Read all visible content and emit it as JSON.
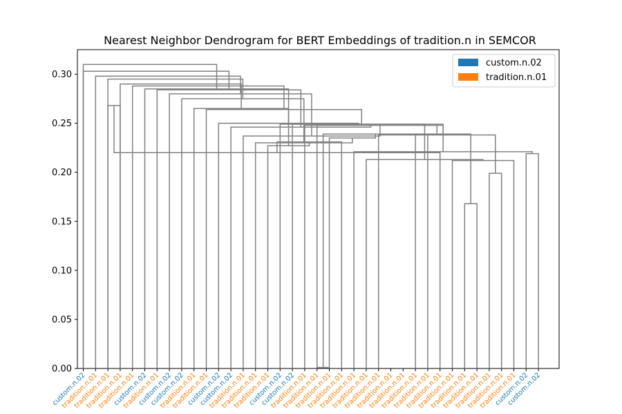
{
  "chart_data": {
    "type": "dendrogram",
    "title": "Nearest Neighbor Dendrogram for BERT Embeddings of tradition.n in SEMCOR",
    "xlabel": "",
    "ylabel": "",
    "ylim": [
      0,
      0.325
    ],
    "yticks": [
      "0.00",
      "0.05",
      "0.10",
      "0.15",
      "0.20",
      "0.25",
      "0.30"
    ],
    "yticks_values": [
      0,
      0.05,
      0.1,
      0.15,
      0.2,
      0.25,
      0.3
    ],
    "grid": false,
    "legend_position": "top-right",
    "link_color": "#808080",
    "legend": [
      {
        "label": "custom.n.02",
        "color": "#1f77b4"
      },
      {
        "label": "tradition.n.01",
        "color": "#ff7f0e"
      }
    ],
    "leaves": [
      {
        "label": "custom.n.02",
        "color": "#1f77b4"
      },
      {
        "label": "tradition.n.01",
        "color": "#ff7f0e"
      },
      {
        "label": "tradition.n.01",
        "color": "#ff7f0e"
      },
      {
        "label": "tradition.n.01",
        "color": "#ff7f0e"
      },
      {
        "label": "tradition.n.01",
        "color": "#ff7f0e"
      },
      {
        "label": "custom.n.02",
        "color": "#1f77b4"
      },
      {
        "label": "tradition.n.01",
        "color": "#ff7f0e"
      },
      {
        "label": "custom.n.02",
        "color": "#1f77b4"
      },
      {
        "label": "custom.n.02",
        "color": "#1f77b4"
      },
      {
        "label": "tradition.n.01",
        "color": "#ff7f0e"
      },
      {
        "label": "tradition.n.01",
        "color": "#ff7f0e"
      },
      {
        "label": "custom.n.02",
        "color": "#1f77b4"
      },
      {
        "label": "custom.n.02",
        "color": "#1f77b4"
      },
      {
        "label": "tradition.n.01",
        "color": "#ff7f0e"
      },
      {
        "label": "tradition.n.01",
        "color": "#ff7f0e"
      },
      {
        "label": "tradition.n.01",
        "color": "#ff7f0e"
      },
      {
        "label": "custom.n.02",
        "color": "#1f77b4"
      },
      {
        "label": "custom.n.02",
        "color": "#1f77b4"
      },
      {
        "label": "tradition.n.01",
        "color": "#ff7f0e"
      },
      {
        "label": "tradition.n.01",
        "color": "#ff7f0e"
      },
      {
        "label": "tradition.n.01",
        "color": "#ff7f0e"
      },
      {
        "label": "tradition.n.01",
        "color": "#ff7f0e"
      },
      {
        "label": "tradition.n.01",
        "color": "#ff7f0e"
      },
      {
        "label": "tradition.n.01",
        "color": "#ff7f0e"
      },
      {
        "label": "tradition.n.01",
        "color": "#ff7f0e"
      },
      {
        "label": "tradition.n.01",
        "color": "#ff7f0e"
      },
      {
        "label": "tradition.n.01",
        "color": "#ff7f0e"
      },
      {
        "label": "tradition.n.01",
        "color": "#ff7f0e"
      },
      {
        "label": "tradition.n.01",
        "color": "#ff7f0e"
      },
      {
        "label": "tradition.n.01",
        "color": "#ff7f0e"
      },
      {
        "label": "tradition.n.01",
        "color": "#ff7f0e"
      },
      {
        "label": "tradition.n.01",
        "color": "#ff7f0e"
      },
      {
        "label": "tradition.n.01",
        "color": "#ff7f0e"
      },
      {
        "label": "tradition.n.01",
        "color": "#ff7f0e"
      },
      {
        "label": "tradition.n.01",
        "color": "#ff7f0e"
      },
      {
        "label": "tradition.n.01",
        "color": "#ff7f0e"
      },
      {
        "label": "custom.n.02",
        "color": "#1f77b4"
      },
      {
        "label": "custom.n.02",
        "color": "#1f77b4"
      }
    ],
    "merges": [
      [
        2,
        3,
        0.268
      ],
      [
        19,
        20,
        0.001
      ],
      [
        31,
        32,
        0.168
      ],
      [
        33,
        34,
        0.199
      ],
      [
        30,
        35,
        0.212
      ],
      [
        36,
        37,
        0.219
      ],
      [
        29,
        38,
        0.22
      ],
      [
        28,
        39,
        0.239
      ],
      [
        27,
        40,
        0.239
      ],
      [
        24,
        41,
        0.238
      ],
      [
        23,
        42,
        0.213
      ],
      [
        22,
        43,
        0.221
      ],
      [
        21,
        44,
        0.231
      ],
      [
        20,
        45,
        0.235
      ],
      [
        19,
        46,
        0.248
      ],
      [
        18,
        47,
        0.248
      ],
      [
        17,
        48,
        0.249
      ],
      [
        16,
        49,
        0.249
      ],
      [
        15,
        50,
        0.227
      ],
      [
        14,
        51,
        0.23
      ],
      [
        13,
        52,
        0.237
      ],
      [
        12,
        53,
        0.246
      ],
      [
        11,
        54,
        0.25
      ],
      [
        10,
        55,
        0.264
      ],
      [
        9,
        56,
        0.265
      ],
      [
        8,
        57,
        0.275
      ],
      [
        7,
        58,
        0.28
      ],
      [
        6,
        59,
        0.284
      ],
      [
        5,
        60,
        0.285
      ],
      [
        4,
        61,
        0.288
      ],
      [
        3,
        62,
        0.29
      ],
      [
        2,
        63,
        0.295
      ],
      [
        1,
        64,
        0.298
      ],
      [
        0,
        65,
        0.303
      ],
      [
        0,
        66,
        0.31
      ]
    ]
  }
}
